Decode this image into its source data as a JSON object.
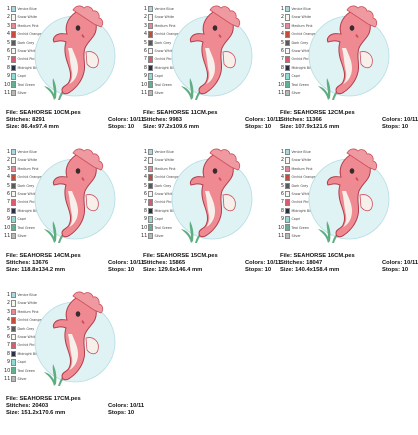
{
  "colors_legend": [
    {
      "num": "1",
      "name": "Venice Blue",
      "color": "#a9d8e0"
    },
    {
      "num": "2",
      "name": "Snow White",
      "color": "#f6f6f2"
    },
    {
      "num": "3",
      "name": "Medium Pink",
      "color": "#e88892"
    },
    {
      "num": "4",
      "name": "Orchid Orange",
      "color": "#c74b3c"
    },
    {
      "num": "5",
      "name": "Dark Grey",
      "color": "#5a5a5a"
    },
    {
      "num": "6",
      "name": "Snow White",
      "color": "#f6f6f2"
    },
    {
      "num": "7",
      "name": "Orchid Pink",
      "color": "#d85b6e"
    },
    {
      "num": "8",
      "name": "Midnight Blue",
      "color": "#2b2f4a"
    },
    {
      "num": "9",
      "name": "Capri",
      "color": "#8fdbd0"
    },
    {
      "num": "10",
      "name": "Teal Green",
      "color": "#5fb18f"
    },
    {
      "num": "11",
      "name": "Silver",
      "color": "#b8b8b8"
    }
  ],
  "labels": {
    "file": "File:",
    "stitches": "Stitches:",
    "size": "Size:",
    "colors": "Colors:",
    "stops": "Stops:"
  },
  "art_colors": {
    "bubble": "#dff2f4",
    "bubble_edge": "#b6dde4",
    "body": "#f08a92",
    "body_dark": "#cc4f5c",
    "belly": "#f7f0ea",
    "fin": "#ef9aa0",
    "weed": "#5fae82",
    "outline": "#b23c4a"
  },
  "designs": [
    {
      "file": "SEAHORSE 10CM.pes",
      "stitches": "8291",
      "size": "86.4x97.4 mm",
      "colors": "10/11",
      "stops": "10"
    },
    {
      "file": "SEAHORSE 11CM.pes",
      "stitches": "9983",
      "size": "97.2x109.6 mm",
      "colors": "10/11",
      "stops": "10"
    },
    {
      "file": "SEAHORSE 12CM.pes",
      "stitches": "11366",
      "size": "107.9x121.6 mm",
      "colors": "10/11",
      "stops": "10"
    },
    {
      "file": "SEAHORSE 14CM.pes",
      "stitches": "13676",
      "size": "118.8x134.2 mm",
      "colors": "10/11",
      "stops": "10"
    },
    {
      "file": "SEAHORSE 15CM.pes",
      "stitches": "15865",
      "size": "129.6x146.4 mm",
      "colors": "10/11",
      "stops": "10"
    },
    {
      "file": "SEAHORSE 16CM.pes",
      "stitches": "18047",
      "size": "140.4x158.4 mm",
      "colors": "10/11",
      "stops": "10"
    },
    {
      "file": "SEAHORSE 17CM.pes",
      "stitches": "20403",
      "size": "151.2x170.6 mm",
      "colors": "10/11",
      "stops": "10"
    }
  ]
}
